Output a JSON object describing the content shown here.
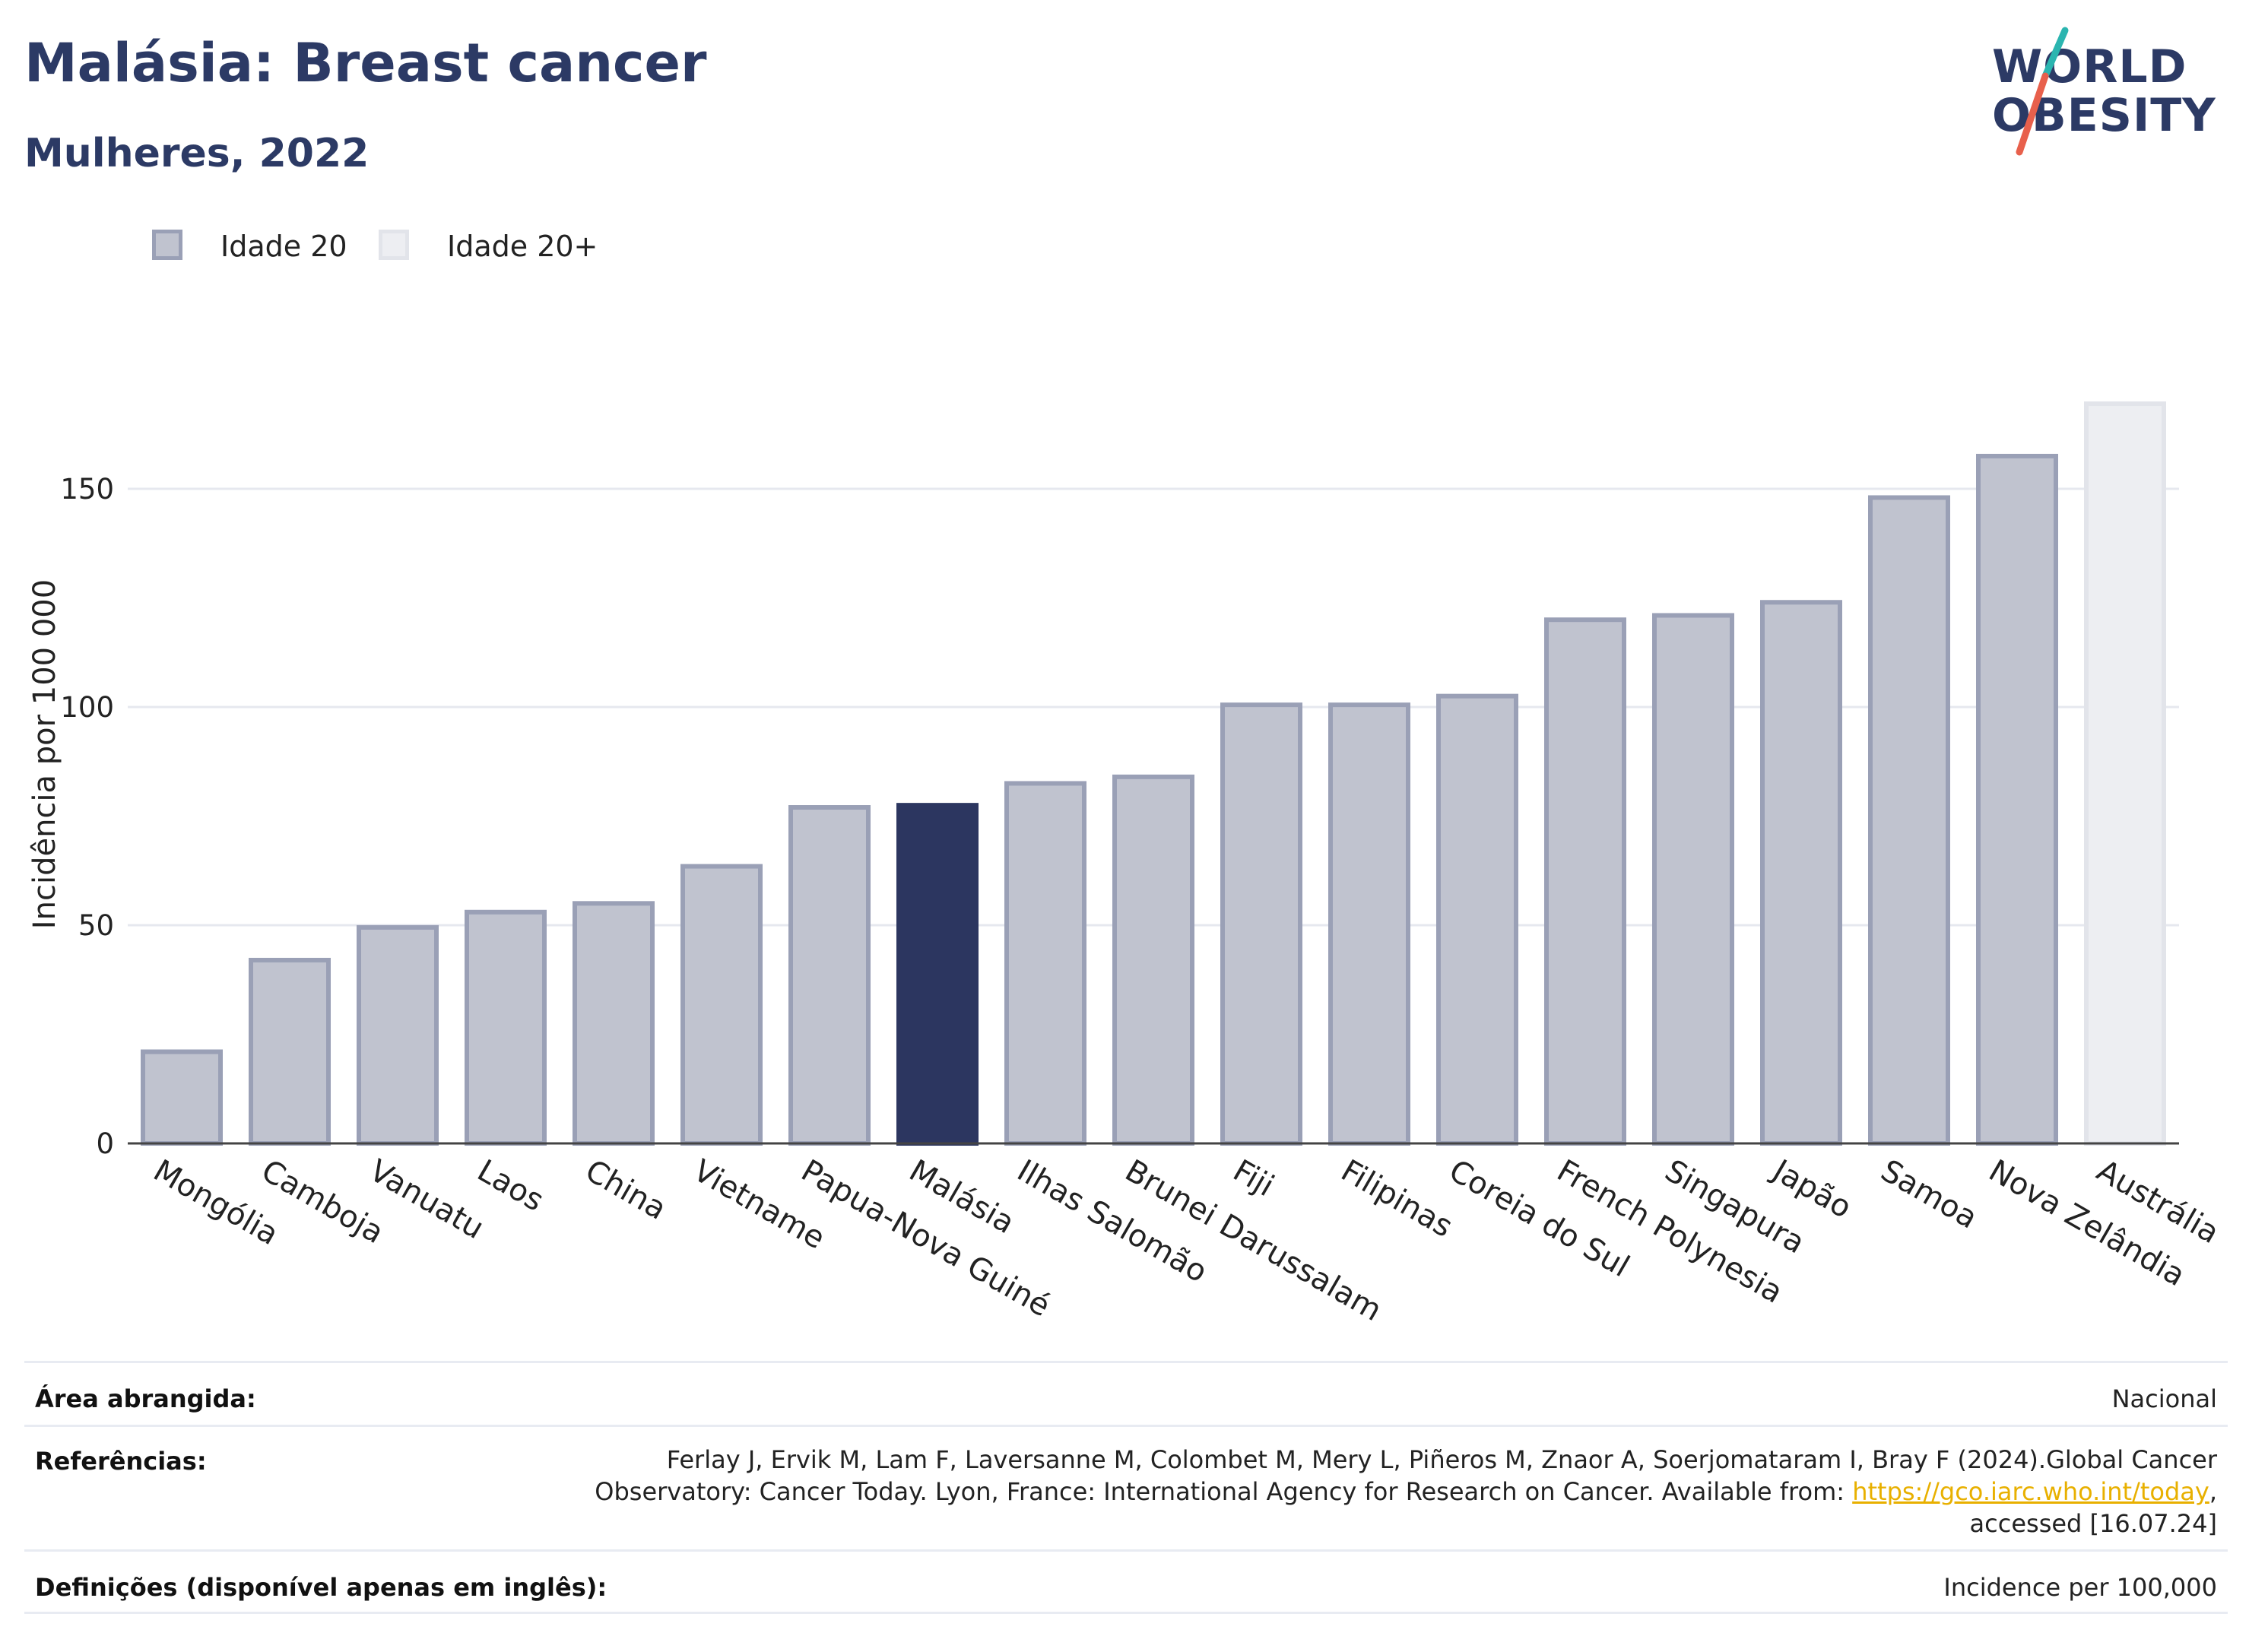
{
  "header": {
    "title": "Malásia: Breast cancer",
    "subtitle": "Mulheres, 2022"
  },
  "logo": {
    "line1": "WORLD",
    "line2": "OBESITY",
    "colors": {
      "text": "#2c3a65",
      "slash_top": "#2bb5b0",
      "slash_bottom": "#e8604c"
    }
  },
  "legend": [
    {
      "label": "Idade 20",
      "fill": "#c0c3cf",
      "stroke": "#9aa0b6"
    },
    {
      "label": "Idade 20+",
      "fill": "#edeef2",
      "stroke": "#e2e4ea"
    }
  ],
  "chart_data": {
    "type": "bar",
    "title": "Malásia: Breast cancer",
    "subtitle": "Mulheres, 2022",
    "xlabel": "",
    "ylabel": "Incidência por 100 000",
    "ylim": [
      0,
      170
    ],
    "yticks": [
      0,
      50,
      100,
      150
    ],
    "grid": true,
    "legend_position": "top-left",
    "categories": [
      "Mongólia",
      "Camboja",
      "Vanuatu",
      "Laos",
      "China",
      "Vietname",
      "Papua-Nova Guiné",
      "Malásia",
      "Ilhas Salomão",
      "Brunei Darussalam",
      "Fiji",
      "Filipinas",
      "Coreia do Sul",
      "French Polynesia",
      "Singapura",
      "Japão",
      "Samoa",
      "Nova Zelândia",
      "Austrália"
    ],
    "values": [
      21,
      42,
      49.5,
      53,
      55,
      63.5,
      77,
      77.5,
      82.5,
      84,
      100.5,
      100.5,
      102.5,
      120,
      121,
      124,
      148,
      157.5,
      169.5
    ],
    "series_group": [
      "Idade 20",
      "Idade 20",
      "Idade 20",
      "Idade 20",
      "Idade 20",
      "Idade 20",
      "Idade 20",
      "Idade 20",
      "Idade 20",
      "Idade 20",
      "Idade 20",
      "Idade 20",
      "Idade 20",
      "Idade 20",
      "Idade 20",
      "Idade 20",
      "Idade 20",
      "Idade 20",
      "Idade 20+"
    ],
    "highlight": "Malásia",
    "colors": {
      "bar_fill": "#c0c3cf",
      "bar_stroke": "#9aa0b6",
      "highlight_fill": "#2c3660",
      "alt_fill": "#edeef2",
      "alt_stroke": "#e2e4ea",
      "grid": "#e6e8ef",
      "axis": "#444444"
    }
  },
  "info": {
    "area_label": "Área abrangida:",
    "area_value": "Nacional",
    "ref_label": "Referências:",
    "ref_line1": "Ferlay J, Ervik M, Lam F, Laversanne M, Colombet M, Mery L, Piñeros M, Znaor A, Soerjomataram I, Bray F (2024).Global Cancer",
    "ref_line2_prefix": "Observatory: Cancer Today. Lyon, France: International Agency for Research on Cancer. Available from: ",
    "ref_link": "https://gco.iarc.who.int/today",
    "ref_line2_suffix": ",",
    "ref_line3": "accessed [16.07.24]",
    "def_label": "Definições (disponível apenas em inglês):",
    "def_value": "Incidence per 100,000"
  }
}
